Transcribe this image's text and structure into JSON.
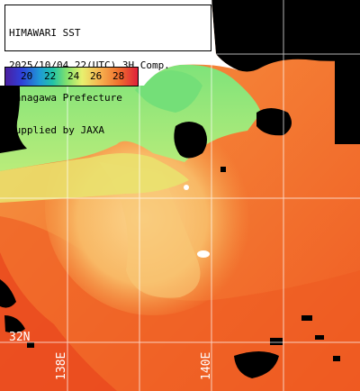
{
  "info": {
    "line1": "HIMAWARI SST",
    "line2": "2025/10/04 22(UTC) 3H Comp.",
    "line3": "Kanagawa Prefecture",
    "line4": "supplied by JAXA"
  },
  "scale": {
    "ticks": [
      "20",
      "22",
      "24",
      "26",
      "28"
    ]
  },
  "grid_labels": {
    "lat": "32N",
    "lon_west": "138E",
    "lon_east": "140E"
  },
  "colors": {
    "land": "#000000",
    "cloud_mask": "#ffffff",
    "warm_sea": "#f2581f",
    "mid_sea": "#f58a3c",
    "cool_sea": "#8ee87a",
    "grid": "#ffffff"
  }
}
